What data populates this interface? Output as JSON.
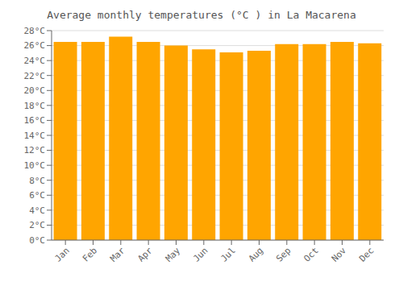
{
  "chart_data": {
    "type": "bar",
    "title": "Average monthly temperatures (°C ) in La Macarena",
    "categories": [
      "Jan",
      "Feb",
      "Mar",
      "Apr",
      "May",
      "Jun",
      "Jul",
      "Aug",
      "Sep",
      "Oct",
      "Nov",
      "Dec"
    ],
    "values": [
      26.5,
      26.5,
      27.2,
      26.5,
      26.0,
      25.5,
      25.1,
      25.3,
      26.2,
      26.2,
      26.5,
      26.3
    ],
    "color": "#FFA500",
    "ylim": [
      0,
      28
    ],
    "yticks": [
      {
        "value": 0,
        "label": "0°C"
      },
      {
        "value": 2,
        "label": "2°C"
      },
      {
        "value": 4,
        "label": "4°C"
      },
      {
        "value": 6,
        "label": "6°C"
      },
      {
        "value": 8,
        "label": "8°C"
      },
      {
        "value": 10,
        "label": "10°C"
      },
      {
        "value": 12,
        "label": "12°C"
      },
      {
        "value": 14,
        "label": "14°C"
      },
      {
        "value": 16,
        "label": "16°C"
      },
      {
        "value": 18,
        "label": "18°C"
      },
      {
        "value": 20,
        "label": "20°C"
      },
      {
        "value": 22,
        "label": "22°C"
      },
      {
        "value": 24,
        "label": "24°C"
      },
      {
        "value": 26,
        "label": "26°C"
      },
      {
        "value": 28,
        "label": "28°C"
      }
    ],
    "grid": true
  }
}
